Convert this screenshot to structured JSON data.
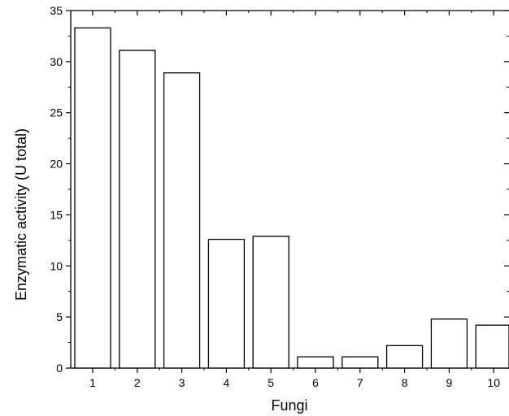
{
  "chart_data": {
    "type": "bar",
    "xlabel": "Fungi",
    "ylabel": "Enzymatic activity (U total)",
    "ylim": [
      0,
      35
    ],
    "yticks": [
      "0",
      "5",
      "10",
      "15",
      "20",
      "25",
      "30",
      "35"
    ],
    "categories": [
      "1",
      "2",
      "3",
      "4",
      "5",
      "6",
      "7",
      "8",
      "9",
      "10"
    ],
    "values": [
      33.3,
      31.1,
      28.9,
      12.6,
      12.9,
      1.1,
      1.1,
      2.2,
      4.8,
      4.2
    ],
    "grid": false,
    "legend": "none",
    "bar_fill": "#ffffff",
    "bar_stroke": "#000000"
  }
}
